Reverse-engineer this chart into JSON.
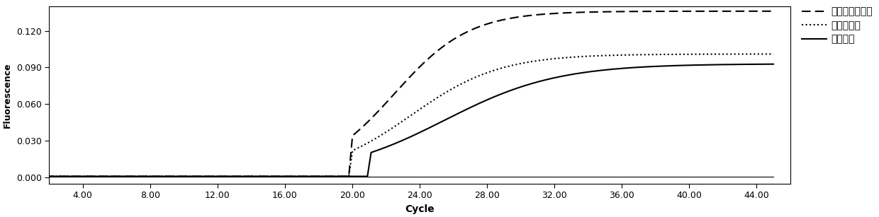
{
  "title": "",
  "xlabel": "Cycle",
  "ylabel": "Fluorescence",
  "xlim": [
    2,
    46
  ],
  "ylim": [
    -0.005,
    0.14
  ],
  "xticks": [
    4.0,
    8.0,
    12.0,
    16.0,
    20.0,
    24.0,
    28.0,
    32.0,
    36.0,
    40.0,
    44.0
  ],
  "yticks": [
    0.0,
    0.03,
    0.06,
    0.09,
    0.12
  ],
  "legend_labels": [
    "牛肺炎克雷伯菌",
    "牛分枝杆菌",
    "牛支原体"
  ],
  "line_color": "#000000",
  "figsize": [
    12.4,
    3.07
  ],
  "dpi": 100
}
